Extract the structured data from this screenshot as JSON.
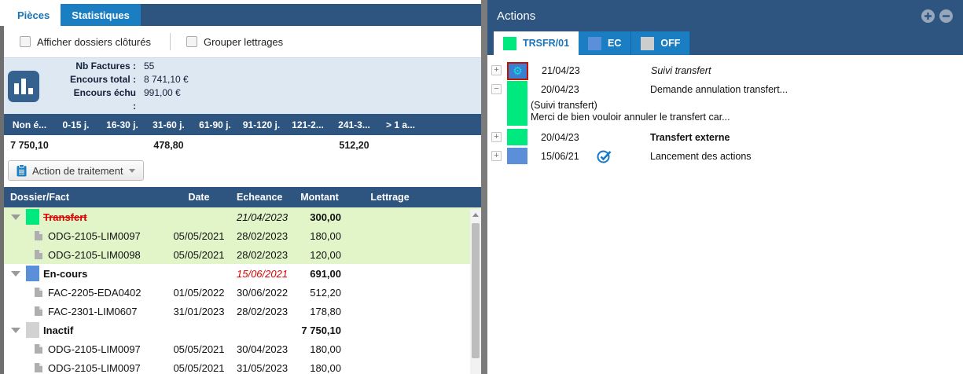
{
  "left_panel": {
    "tabs": [
      {
        "label": "Pièces",
        "active": true
      },
      {
        "label": "Statistiques",
        "active": false
      }
    ],
    "filters": [
      {
        "label": "Afficher dossiers clôturés",
        "checked": false
      },
      {
        "label": "Grouper lettrages",
        "checked": false
      }
    ],
    "summary": {
      "icon": "bar-chart-icon",
      "rows": [
        {
          "label": "Nb Factures :",
          "value": "55"
        },
        {
          "label": "Encours total :",
          "value": "8 741,10 €"
        },
        {
          "label": "Encours échu :",
          "value": "991,00 €"
        }
      ]
    },
    "aging": {
      "columns": [
        "Non é...",
        "0-15 j.",
        "16-30 j.",
        "31-60 j.",
        "61-90 j.",
        "91-120 j.",
        "121-2...",
        "241-3...",
        "> 1 a..."
      ],
      "values": [
        "7 750,10",
        "",
        "",
        "478,80",
        "",
        "",
        "",
        "512,20",
        ""
      ]
    },
    "action_button": {
      "label": "Action de traitement",
      "icon": "clipboard-icon",
      "caret": "chevron-down-icon"
    },
    "table": {
      "columns": [
        "Dossier/Fact",
        "Date",
        "Echeance",
        "Montant",
        "Lettrage"
      ],
      "rows": [
        {
          "kind": "group",
          "icon_color": "#00E97E",
          "label": "Transfert",
          "label_style": "red-strike",
          "date": "",
          "echeance": "21/04/2023",
          "echeance_style": "italic",
          "montant": "300,00",
          "highlight": true
        },
        {
          "kind": "leaf",
          "label": "ODG-2105-LIM0097",
          "date": "05/05/2021",
          "echeance": "28/02/2023",
          "montant": "180,00",
          "highlight": true
        },
        {
          "kind": "leaf",
          "label": "ODG-2105-LIM0098",
          "date": "05/05/2021",
          "echeance": "28/02/2023",
          "montant": "120,00",
          "highlight": true
        },
        {
          "kind": "group",
          "icon_color": "#5C8FD9",
          "label": "En-cours",
          "label_style": "",
          "date": "",
          "echeance": "15/06/2021",
          "echeance_style": "italic-red",
          "montant": "691,00",
          "highlight": false
        },
        {
          "kind": "leaf",
          "label": "FAC-2205-EDA0402",
          "date": "01/05/2022",
          "echeance": "30/06/2022",
          "montant": "512,20",
          "highlight": false
        },
        {
          "kind": "leaf",
          "label": "FAC-2301-LIM0607",
          "date": "31/01/2023",
          "echeance": "28/02/2023",
          "montant": "178,80",
          "highlight": false
        },
        {
          "kind": "group",
          "icon_color": "#D2D2D2",
          "label": "Inactif",
          "label_style": "",
          "date": "",
          "echeance": "",
          "echeance_style": "",
          "montant": "7 750,10",
          "highlight": false
        },
        {
          "kind": "leaf",
          "label": "ODG-2105-LIM0097",
          "date": "05/05/2021",
          "echeance": "30/04/2023",
          "montant": "180,00",
          "highlight": false
        },
        {
          "kind": "leaf",
          "label": "ODG-2105-LIM0097",
          "date": "05/05/2021",
          "echeance": "31/05/2023",
          "montant": "180,00",
          "highlight": false
        }
      ]
    }
  },
  "right_panel": {
    "title": "Actions",
    "header_icons": [
      "plus-circle-icon",
      "minus-circle-icon"
    ],
    "tabs": [
      {
        "label": "TRSFR/01",
        "color": "#00E97E",
        "active": true
      },
      {
        "label": "EC",
        "color": "#5C8FD9",
        "active": false
      },
      {
        "label": "OFF",
        "color": "#CDCDCD",
        "active": false
      }
    ],
    "items": [
      {
        "expander": "+",
        "icon": "gear-icon",
        "selected": true,
        "date": "21/04/23",
        "text": "Suivi transfert",
        "text_style": "italic",
        "check": false
      },
      {
        "expander": "−",
        "icon": "status-green",
        "selected": false,
        "date": "20/04/23",
        "text": "Demande annulation transfert...",
        "text_style": "",
        "check": false,
        "details": [
          "(Suivi transfert)",
          "Merci de bien vouloir annuler le transfert car..."
        ]
      },
      {
        "expander": "+",
        "icon": "status-green",
        "selected": false,
        "date": "20/04/23",
        "text": "Transfert externe",
        "text_style": "bold",
        "check": false
      },
      {
        "expander": "+",
        "icon": "status-blue",
        "selected": false,
        "date": "15/06/21",
        "text": "Lancement des actions",
        "text_style": "",
        "check": true
      }
    ]
  },
  "colors": {
    "navy": "#2E5480",
    "bright_blue": "#1B7EC2",
    "green": "#00E97E",
    "cornflower": "#5C8FD9",
    "gray_status": "#D2D2D2",
    "pale_green_row": "#E1F5C9",
    "red": "#E10000"
  }
}
